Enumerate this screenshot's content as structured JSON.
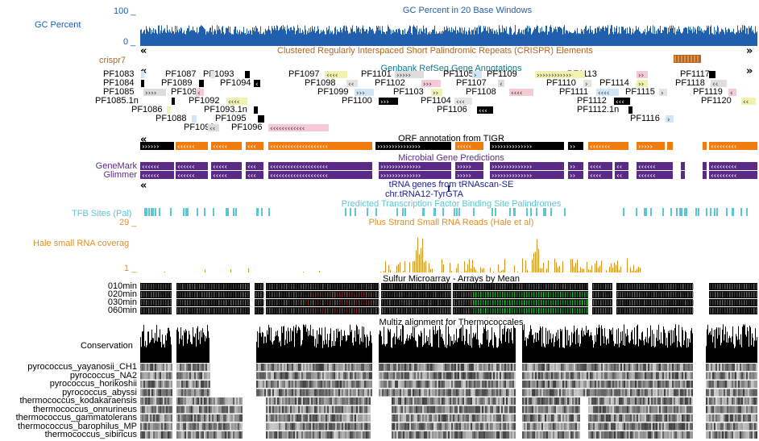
{
  "gc": {
    "title": "GC Percent in 20 Base Windows",
    "label": "GC Percent",
    "ymax": "100 _",
    "ymin": "0 _",
    "color": "#1f5fad"
  },
  "crispr": {
    "title": "Clustered Regularly Interspaced Short Palindromic Repeats (CRISPR) Elements",
    "label": "crispr7",
    "color": "#b5651d"
  },
  "refseq": {
    "title": "Genbank RefSeq Gene Annotations",
    "color": "#117a8b",
    "genes": [
      {
        "name": "PF1083",
        "glyph": "‹"
      },
      {
        "name": "PF1084",
        "glyph": "‹"
      },
      {
        "name": "PF1085",
        "glyph": "››››"
      },
      {
        "name": "PF1085.1n",
        "glyph": ""
      },
      {
        "name": "PF1086",
        "glyph": "‹"
      },
      {
        "name": "PF1087",
        "glyph": "›"
      },
      {
        "name": "PF1088",
        "glyph": "‹"
      },
      {
        "name": "PF1089",
        "glyph": "‹"
      },
      {
        "name": "PF1090",
        "glyph": "‹‹"
      },
      {
        "name": "PF1091",
        "glyph": "‹"
      },
      {
        "name": "PF1092",
        "glyph": "‹‹‹‹"
      },
      {
        "name": "PF1093",
        "glyph": ""
      },
      {
        "name": "PF1093.1n",
        "glyph": ""
      },
      {
        "name": "PF1094",
        "glyph": "‹"
      },
      {
        "name": "PF1095",
        "glyph": ""
      },
      {
        "name": "PF1096",
        "glyph": "‹‹‹‹‹‹‹‹‹‹‹‹"
      },
      {
        "name": "PF1097",
        "glyph": "‹‹‹‹"
      },
      {
        "name": "PF1098",
        "glyph": "‹‹"
      },
      {
        "name": "PF1099",
        "glyph": "›››"
      },
      {
        "name": "PF1100",
        "glyph": "›››"
      },
      {
        "name": "PF1101",
        "glyph": "›››››"
      },
      {
        "name": "PF1102",
        "glyph": "›››"
      },
      {
        "name": "PF1103",
        "glyph": "››"
      },
      {
        "name": "PF1104",
        "glyph": "‹‹‹"
      },
      {
        "name": "PF1105",
        "glyph": "›"
      },
      {
        "name": "PF1106",
        "glyph": "‹‹‹"
      },
      {
        "name": "PF1107",
        "glyph": "‹"
      },
      {
        "name": "PF1108",
        "glyph": "‹‹‹‹"
      },
      {
        "name": "PF1109",
        "glyph": "››››››››››››"
      },
      {
        "name": "PF1110",
        "glyph": "›"
      },
      {
        "name": "PF1111",
        "glyph": "‹‹‹‹"
      },
      {
        "name": "PF1112",
        "glyph": "‹‹‹"
      },
      {
        "name": "PF1112.1n",
        "glyph": ""
      },
      {
        "name": "PF1113",
        "glyph": "››"
      },
      {
        "name": "PF1114",
        "glyph": "››"
      },
      {
        "name": "PF1115",
        "glyph": "›"
      },
      {
        "name": "PF1116",
        "glyph": "›"
      },
      {
        "name": "PF1117",
        "glyph": ""
      },
      {
        "name": "PF1118",
        "glyph": "‹‹"
      },
      {
        "name": "PF1119",
        "glyph": "‹"
      },
      {
        "name": "PF1120",
        "glyph": "‹‹"
      }
    ]
  },
  "orf": {
    "title": "ORF annotation from TIGR",
    "color": "#f07c10"
  },
  "microbial": {
    "title": "Microbial Gene Predictions",
    "label_genemark": "GeneMark",
    "label_glimmer": "Glimmer",
    "color": "#5b2a86"
  },
  "trna": {
    "title": "tRNA genes from tRNAscan-SE",
    "gene": "chr.tRNA12-TyrGTA",
    "color": "#1b1b8f"
  },
  "tfb": {
    "title": "Predicted Transcription Factor Binding Site Palindromes",
    "label": "TFB Sites (Pal)",
    "color": "#5cc6d0"
  },
  "hale": {
    "title": "Plus Strand Small RNA Reads (Hale et al)",
    "label": "Hale small RNA coverag",
    "ymax": "29 _",
    "ymin": "1 _",
    "color": "#e09020"
  },
  "sulfur": {
    "title": "Sulfur Microarray - Arrays by Mean",
    "rows": [
      "010min",
      "020min",
      "030min",
      "060min"
    ]
  },
  "multiz": {
    "title": "Multiz alignment for Thermococcales",
    "conservation_label": "Conservation",
    "species": [
      "pyrococcus_yayanosii_CH1",
      "pyrococcus_NA2",
      "pyrococcus_horikoshii",
      "pyrococcus_abyssi",
      "thermococcus_kodakaraensis",
      "thermococcus_onnurineus",
      "thermococcus_gammatolerans",
      "thermococcus_barophilus_MP",
      "thermococcus_sibiricus"
    ]
  },
  "nav": {
    "left": "«",
    "right": "»"
  }
}
